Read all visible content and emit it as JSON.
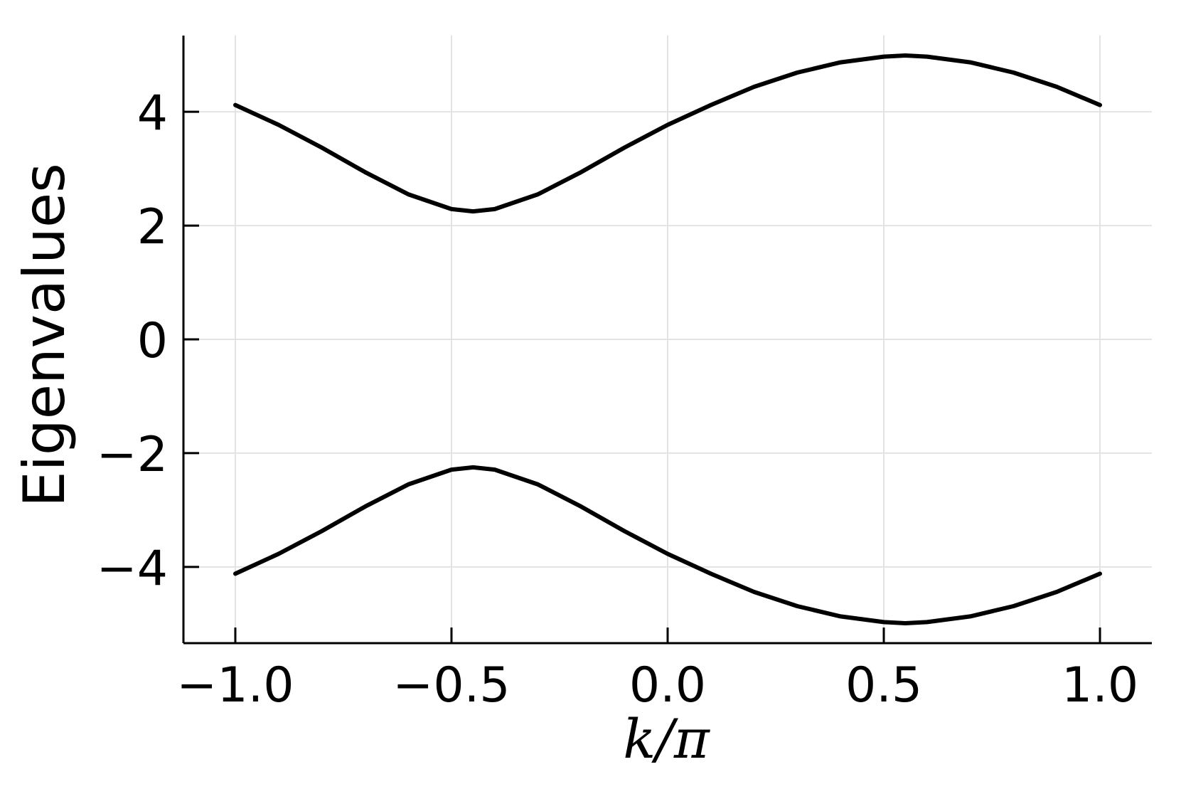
{
  "chart_data": {
    "type": "line",
    "xlabel": "k/π",
    "ylabel": "Eigenvalues",
    "xlim": [
      -1.12,
      1.12
    ],
    "ylim": [
      -5.34,
      5.34
    ],
    "xticks": [
      -1.0,
      -0.5,
      0.0,
      0.5,
      1.0
    ],
    "xtick_labels": [
      "−1.0",
      "−0.5",
      "0.0",
      "0.5",
      "1.0"
    ],
    "yticks": [
      -4,
      -2,
      0,
      2,
      4
    ],
    "ytick_labels": [
      "−4",
      "−2",
      "0",
      "2",
      "4"
    ],
    "grid": true,
    "legend": "none",
    "line_color": "#000000",
    "x": [
      -1.0,
      -0.9,
      -0.8,
      -0.7,
      -0.6,
      -0.5,
      -0.45,
      -0.4,
      -0.3,
      -0.2,
      -0.1,
      0.0,
      0.1,
      0.2,
      0.3,
      0.4,
      0.5,
      0.55,
      0.6,
      0.7,
      0.8,
      0.9,
      1.0
    ],
    "series": [
      {
        "values": [
          4.12,
          3.77,
          3.37,
          2.94,
          2.55,
          2.29,
          2.25,
          2.29,
          2.55,
          2.94,
          3.37,
          3.77,
          4.12,
          4.44,
          4.69,
          4.87,
          4.97,
          4.99,
          4.97,
          4.87,
          4.69,
          4.44,
          4.12
        ]
      },
      {
        "values": [
          -4.12,
          -3.77,
          -3.37,
          -2.94,
          -2.55,
          -2.29,
          -2.25,
          -2.29,
          -2.55,
          -2.94,
          -3.37,
          -3.77,
          -4.12,
          -4.44,
          -4.69,
          -4.87,
          -4.97,
          -4.99,
          -4.97,
          -4.87,
          -4.69,
          -4.44,
          -4.12
        ]
      }
    ]
  }
}
